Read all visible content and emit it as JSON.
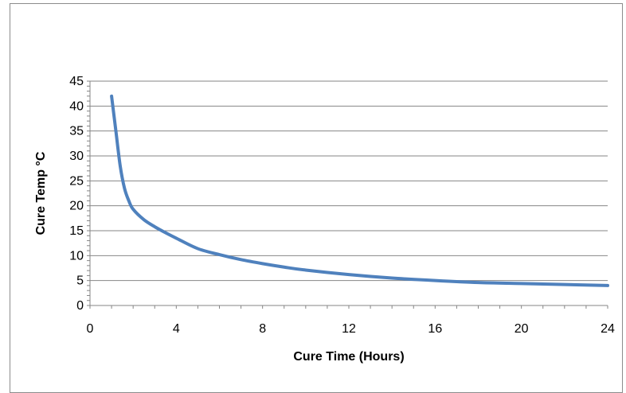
{
  "chart_data": {
    "type": "line",
    "title": "",
    "xlabel": "Cure Time (Hours)",
    "ylabel": "Cure Temp °C",
    "xlim": [
      0,
      24
    ],
    "ylim": [
      0,
      45
    ],
    "x_ticks": [
      0,
      4,
      8,
      12,
      16,
      20,
      24
    ],
    "y_ticks": [
      0,
      5,
      10,
      15,
      20,
      25,
      30,
      35,
      40,
      45
    ],
    "grid": "horizontal",
    "legend": "none",
    "series": [
      {
        "color": "#4f81bd",
        "x": [
          1,
          1.2,
          1.4,
          1.6,
          1.8,
          2,
          2.5,
          3,
          3.5,
          4,
          5,
          6,
          7,
          8,
          9,
          10,
          12,
          14,
          16,
          18,
          20,
          22,
          24
        ],
        "y": [
          42,
          35,
          28,
          23.5,
          21,
          19.3,
          17.2,
          15.8,
          14.6,
          13.5,
          11.4,
          10.2,
          9.2,
          8.4,
          7.7,
          7.1,
          6.2,
          5.5,
          5.0,
          4.6,
          4.4,
          4.2,
          4.0
        ]
      }
    ]
  }
}
